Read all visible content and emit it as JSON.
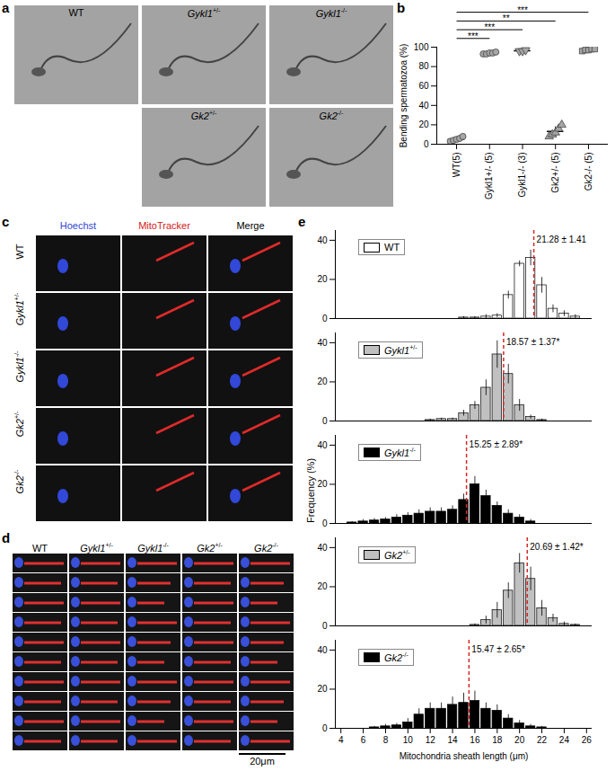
{
  "figure": {
    "a": {
      "panel": "a",
      "images": [
        "WT",
        "Gykl1+/-",
        "Gykl1-/-",
        "Gk2+/-",
        "Gk2-/-"
      ]
    },
    "c": {
      "panel": "c",
      "columns": [
        "Hoechst",
        "MitoTracker",
        "Merge"
      ],
      "rows": [
        "WT",
        "Gykl1+/-",
        "Gykl1-/-",
        "Gk2+/-",
        "Gk2-/-"
      ]
    },
    "d": {
      "panel": "d",
      "columns": [
        "WT",
        "Gykl1+/-",
        "Gykl1-/-",
        "Gk2+/-",
        "Gk2-/-"
      ],
      "scale_bar": "20μm"
    }
  },
  "chart_data": [
    {
      "panel": "b",
      "type": "scatter",
      "ylabel": "Bending spermatozoa (%)",
      "categories": [
        "WT(5)",
        "Gykl1+/- (5)",
        "Gykl1-/- (3)",
        "Gk2+/- (5)",
        "Gk2-/- (5)"
      ],
      "ylim": [
        0,
        100
      ],
      "yticks": [
        0,
        20,
        40,
        60,
        80,
        100
      ],
      "groups": [
        {
          "marker": "circle",
          "color": "#a6a6a6",
          "values": [
            3,
            4,
            5,
            6,
            8
          ],
          "mean": 5.2,
          "sd": 1.9
        },
        {
          "marker": "circle",
          "color": "#a6a6a6",
          "values": [
            93,
            93,
            94,
            94,
            95
          ],
          "mean": 93.8,
          "sd": 0.8
        },
        {
          "marker": "triangle-down",
          "color": "#a6a6a6",
          "values": [
            96,
            96,
            97
          ],
          "mean": 96.3,
          "sd": 0.6
        },
        {
          "marker": "triangle",
          "color": "#a6a6a6",
          "values": [
            8,
            10,
            12,
            16,
            20
          ],
          "mean": 13.2,
          "sd": 4.7
        },
        {
          "marker": "square",
          "color": "#a6a6a6",
          "values": [
            96,
            97,
            97,
            98,
            98
          ],
          "mean": 97.2,
          "sd": 0.8
        }
      ],
      "comparisons": [
        {
          "from": "WT(5)",
          "to": "Gykl1+/- (5)",
          "label": "***"
        },
        {
          "from": "WT(5)",
          "to": "Gykl1-/- (3)",
          "label": "***"
        },
        {
          "from": "WT(5)",
          "to": "Gk2+/- (5)",
          "label": "**"
        },
        {
          "from": "WT(5)",
          "to": "Gk2-/- (5)",
          "label": "***"
        }
      ]
    },
    {
      "panel": "e",
      "type": "histogram",
      "xlabel": "Mitochondria sheath length (μm)",
      "ylabel": "Frequency (%)",
      "bins": [
        3.5,
        4.5,
        5.5,
        6.5,
        7.5,
        8.5,
        9.5,
        10.5,
        11.5,
        12.5,
        13.5,
        14.5,
        15.5,
        16.5,
        17.5,
        18.5,
        19.5,
        20.5,
        21.5,
        22.5,
        23.5,
        24.5,
        25.5,
        26.5
      ],
      "xlim": [
        3.5,
        26.5
      ],
      "xticks": [
        4,
        6,
        8,
        10,
        12,
        14,
        16,
        18,
        20,
        22,
        24,
        26
      ],
      "ylim": [
        0,
        45
      ],
      "yticks": [
        0,
        20,
        40
      ],
      "legend": "top-left",
      "tick_labels": "y",
      "series": [
        {
          "name": "WT",
          "color": "#ffffff",
          "mean": 21.28,
          "sd": 1.41,
          "mean_label": "21.28 ± 1.41",
          "values": [
            0,
            0,
            0,
            0,
            0,
            0,
            0,
            0,
            0,
            0,
            0,
            0.5,
            0.5,
            1,
            1.5,
            12,
            28,
            31,
            17,
            5,
            2.5,
            1,
            0
          ],
          "errors": [
            0,
            0,
            0,
            0,
            0,
            0,
            0,
            0,
            0,
            0,
            0,
            0.5,
            0.5,
            1,
            1,
            2,
            1.5,
            4,
            4,
            2,
            1.5,
            1,
            0
          ]
        },
        {
          "name": "Gykl1+/-",
          "color": "#c0c0c0",
          "mean": 18.57,
          "sd": 1.37,
          "mean_label": "18.57 ± 1.37*",
          "values": [
            0,
            0,
            0,
            0,
            0,
            0,
            0,
            0,
            0.5,
            1,
            1,
            4,
            8,
            17,
            34,
            24,
            8,
            2,
            0.5,
            0,
            0,
            0,
            0
          ],
          "errors": [
            0,
            0,
            0,
            0,
            0,
            0,
            0,
            0,
            0.5,
            0.5,
            0.5,
            1.5,
            2,
            4,
            7,
            5,
            3,
            1,
            0.5,
            0,
            0,
            0,
            0
          ]
        },
        {
          "name": "Gykl1-/-",
          "color": "#000000",
          "mean": 15.25,
          "sd": 2.89,
          "mean_label": "15.25 ± 2.89*",
          "values": [
            0,
            0.5,
            1,
            1.5,
            2,
            3,
            4,
            5,
            6,
            6,
            7,
            12,
            20,
            14,
            9,
            5,
            3,
            1,
            0,
            0,
            0,
            0,
            0
          ],
          "errors": [
            0,
            0.5,
            1,
            1,
            1,
            1.5,
            1.5,
            2,
            2,
            2,
            2,
            3,
            4,
            3,
            2,
            2,
            1.5,
            1,
            0,
            0,
            0,
            0,
            0
          ]
        },
        {
          "name": "Gk2+/-",
          "color": "#c0c0c0",
          "mean": 20.69,
          "sd": 1.42,
          "mean_label": "20.69 ± 1.42*",
          "values": [
            0,
            0,
            0,
            0,
            0,
            0,
            0,
            0,
            0,
            0,
            0,
            0,
            0.5,
            3,
            8,
            18,
            32,
            24,
            9,
            4,
            1,
            0.5,
            0
          ],
          "errors": [
            0,
            0,
            0,
            0,
            0,
            0,
            0,
            0,
            0,
            0,
            0,
            0,
            0.5,
            2,
            4,
            4,
            5,
            6,
            4,
            2,
            1,
            0.5,
            0
          ]
        },
        {
          "name": "Gk2-/-",
          "color": "#000000",
          "mean": 15.47,
          "sd": 2.65,
          "mean_label": "15.47 ± 2.65*",
          "values": [
            0,
            0,
            0,
            0.5,
            1,
            1.5,
            3,
            7,
            10,
            10,
            12,
            13,
            14,
            10,
            9,
            5,
            2.5,
            1,
            0.5,
            0,
            0,
            0,
            0
          ],
          "errors": [
            0,
            0,
            0,
            0.5,
            1,
            1,
            2,
            3,
            3,
            3,
            4,
            5,
            5,
            3,
            3,
            2,
            1.5,
            1,
            0.5,
            0,
            0,
            0,
            0
          ]
        }
      ]
    }
  ]
}
